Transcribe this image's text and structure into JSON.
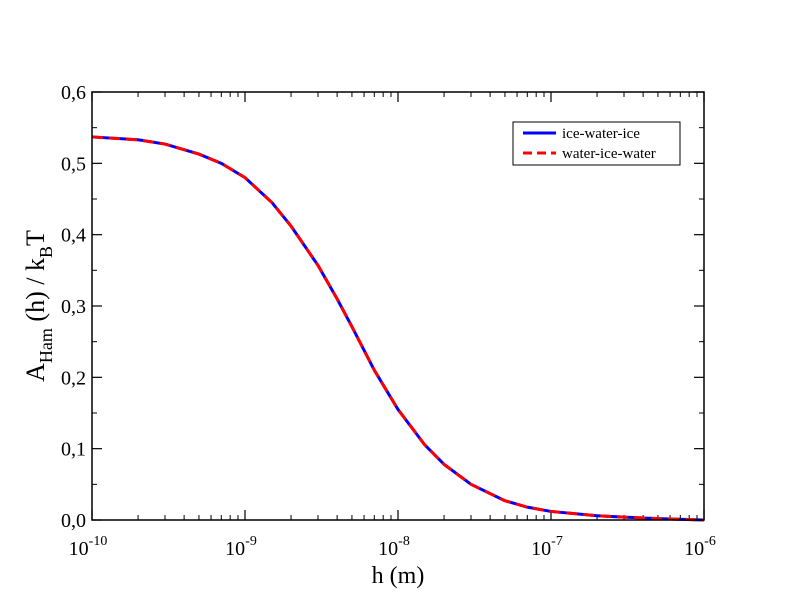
{
  "chart_data": {
    "type": "line",
    "xscale": "log",
    "xlim": [
      1e-10,
      1e-06
    ],
    "ylim": [
      0.0,
      0.6
    ],
    "xlabel": "h (m)",
    "ylabel": {
      "main": "A",
      "sub": "Ham",
      "mid": " (h) / k",
      "sub2": "B",
      "end": "T"
    },
    "ytick_labels": [
      "0,0",
      "0,1",
      "0,2",
      "0,3",
      "0,4",
      "0,5",
      "0,6"
    ],
    "yticks": [
      0.0,
      0.1,
      0.2,
      0.3,
      0.4,
      0.5,
      0.6
    ],
    "xtick_exponents": [
      "-10",
      "-9",
      "-8",
      "-7",
      "-6"
    ],
    "xtick_base": "10",
    "legend": {
      "placement": "top-right",
      "entries": [
        {
          "label": "ice-water-ice",
          "color": "#0000ff",
          "style": "solid"
        },
        {
          "label": "water-ice-water",
          "color": "#ff0000",
          "style": "dashed"
        }
      ]
    },
    "series": [
      {
        "name": "ice-water-ice",
        "color": "#0000ff",
        "x": [
          1e-10,
          2e-10,
          3e-10,
          5e-10,
          7e-10,
          1e-09,
          1.5e-09,
          2e-09,
          3e-09,
          4e-09,
          5e-09,
          7e-09,
          1e-08,
          1.5e-08,
          2e-08,
          3e-08,
          5e-08,
          7e-08,
          1e-07,
          2e-07,
          3e-07,
          5e-07,
          1e-06
        ],
        "y": [
          0.537,
          0.533,
          0.527,
          0.513,
          0.5,
          0.48,
          0.445,
          0.412,
          0.357,
          0.31,
          0.271,
          0.21,
          0.155,
          0.105,
          0.078,
          0.05,
          0.027,
          0.018,
          0.012,
          0.006,
          0.004,
          0.002,
          0.0
        ]
      },
      {
        "name": "water-ice-water",
        "color": "#ff0000",
        "x": [
          1e-10,
          2e-10,
          3e-10,
          5e-10,
          7e-10,
          1e-09,
          1.5e-09,
          2e-09,
          3e-09,
          4e-09,
          5e-09,
          7e-09,
          1e-08,
          1.5e-08,
          2e-08,
          3e-08,
          5e-08,
          7e-08,
          1e-07,
          2e-07,
          3e-07,
          5e-07,
          1e-06
        ],
        "y": [
          0.537,
          0.533,
          0.527,
          0.513,
          0.5,
          0.48,
          0.445,
          0.412,
          0.357,
          0.31,
          0.271,
          0.21,
          0.155,
          0.105,
          0.078,
          0.05,
          0.027,
          0.018,
          0.012,
          0.006,
          0.004,
          0.002,
          0.0
        ]
      }
    ]
  }
}
